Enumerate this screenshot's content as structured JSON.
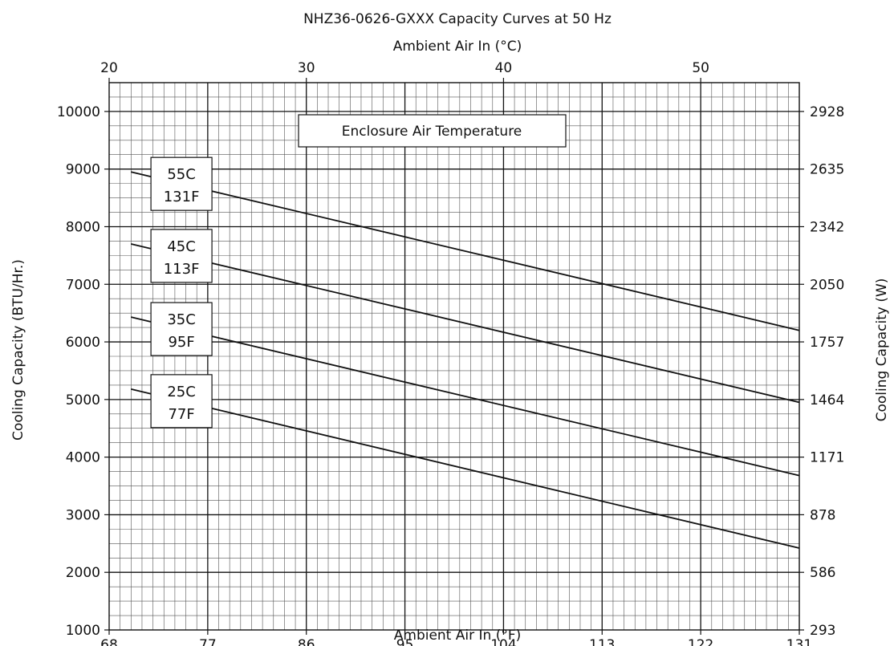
{
  "chart_data": {
    "type": "line",
    "title": "NHZ36-0626-GXXX Capacity Curves at 50 Hz",
    "x_top_label": "Ambient Air In (°C)",
    "x_top_ticks": [
      20,
      30,
      40,
      50
    ],
    "xlabel": "Ambient Air In (°F)",
    "x_ticks": [
      68,
      77,
      86,
      95,
      104,
      113,
      122,
      131
    ],
    "xlim": [
      68,
      131
    ],
    "ylabel": "Cooling Capacity (BTU/Hr.)",
    "y_ticks": [
      1000,
      2000,
      3000,
      4000,
      5000,
      6000,
      7000,
      8000,
      9000,
      10000
    ],
    "ylim": [
      1000,
      10500
    ],
    "y_right_label": "Cooling Capacity (W)",
    "y_right_ticks": [
      "293",
      "586",
      "878",
      "1171",
      "1464",
      "1757",
      "2050",
      "2342",
      "2635",
      "2928"
    ],
    "legend_title": "Enclosure Air Temperature",
    "grid": true,
    "series": [
      {
        "name": "55C 131F",
        "name_line1": "55C",
        "name_line2": "131F",
        "x": [
          70,
          131
        ],
        "y": [
          8950,
          6200
        ]
      },
      {
        "name": "45C 113F",
        "name_line1": "45C",
        "name_line2": "113F",
        "x": [
          70,
          131
        ],
        "y": [
          7700,
          4950
        ]
      },
      {
        "name": "35C 95F",
        "name_line1": "35C",
        "name_line2": "95F",
        "x": [
          70,
          131
        ],
        "y": [
          6430,
          3680
        ]
      },
      {
        "name": "25C 77F",
        "name_line1": "25C",
        "name_line2": "77F",
        "x": [
          70,
          131
        ],
        "y": [
          5180,
          2420
        ]
      }
    ]
  }
}
